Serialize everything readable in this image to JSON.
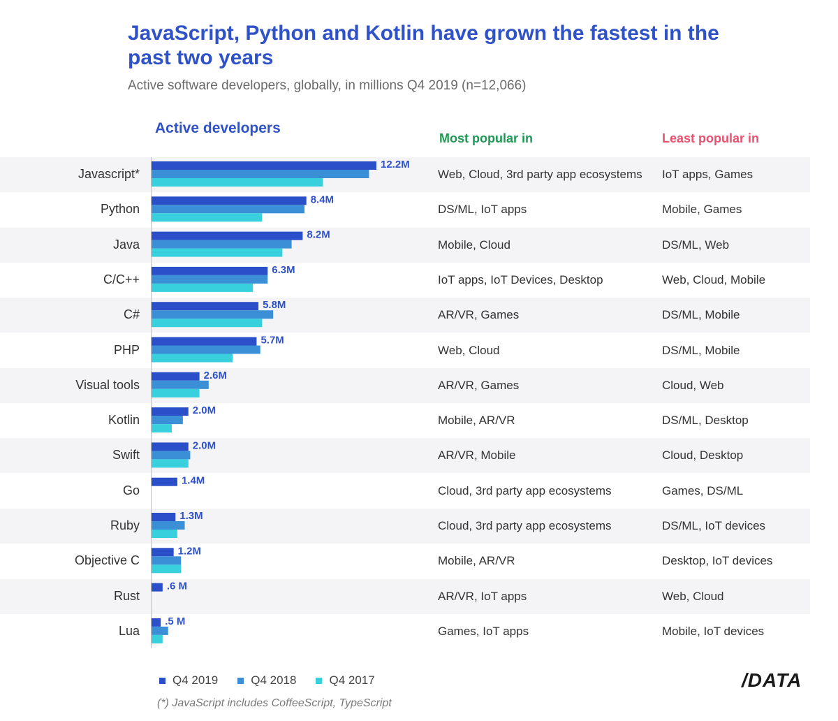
{
  "title": "JavaScript, Python and Kotlin have grown the fastest in the past two years",
  "subtitle": "Active software developers, globally, in millions Q4 2019 (n=12,066)",
  "headers": {
    "active": "Active developers",
    "most": "Most popular in",
    "least": "Least popular in"
  },
  "colors": {
    "q4_2019": "#2b4fc9",
    "q4_2018": "#3b8fd6",
    "q4_2017": "#38d0dc",
    "title": "#2f52c8"
  },
  "chart_data": {
    "type": "bar",
    "orientation": "horizontal",
    "title": "Active developers",
    "unit": "millions",
    "categories": [
      "Javascript*",
      "Python",
      "Java",
      "C/C++",
      "C#",
      "PHP",
      "Visual tools",
      "Kotlin",
      "Swift",
      "Go",
      "Ruby",
      "Objective C",
      "Rust",
      "Lua"
    ],
    "series": [
      {
        "name": "Q4 2019",
        "values": [
          12.2,
          8.4,
          8.2,
          6.3,
          5.8,
          5.7,
          2.6,
          2.0,
          2.0,
          1.4,
          1.3,
          1.2,
          0.6,
          0.5
        ]
      },
      {
        "name": "Q4 2018",
        "values": [
          11.8,
          8.3,
          7.6,
          6.3,
          6.6,
          5.9,
          3.1,
          1.7,
          2.1,
          0,
          1.8,
          1.6,
          0,
          0.9
        ]
      },
      {
        "name": "Q4 2017",
        "values": [
          9.3,
          6.0,
          7.1,
          5.5,
          6.0,
          4.4,
          2.6,
          1.1,
          2.0,
          0,
          1.4,
          1.6,
          0,
          0.6
        ]
      }
    ],
    "value_labels": [
      "12.2M",
      "8.4M",
      "8.2M",
      "6.3M",
      "5.8M",
      "5.7M",
      "2.6M",
      "2.0M",
      "2.0M",
      "1.4M",
      "1.3M",
      "1.2M",
      ".6 M",
      ".5 M"
    ],
    "xlim": [
      0,
      12.2
    ]
  },
  "rows": [
    {
      "lang": "Javascript*",
      "most": "Web, Cloud, 3rd party app ecosystems",
      "least": "IoT apps, Games"
    },
    {
      "lang": "Python",
      "most": "DS/ML, IoT apps",
      "least": "Mobile, Games"
    },
    {
      "lang": "Java",
      "most": "Mobile, Cloud",
      "least": "DS/ML, Web"
    },
    {
      "lang": "C/C++",
      "most": "IoT apps, IoT Devices, Desktop",
      "least": "Web, Cloud, Mobile"
    },
    {
      "lang": "C#",
      "most": "AR/VR, Games",
      "least": "DS/ML, Mobile"
    },
    {
      "lang": "PHP",
      "most": "Web, Cloud",
      "least": "DS/ML, Mobile"
    },
    {
      "lang": "Visual tools",
      "most": "AR/VR, Games",
      "least": "Cloud, Web"
    },
    {
      "lang": "Kotlin",
      "most": "Mobile, AR/VR",
      "least": "DS/ML, Desktop"
    },
    {
      "lang": "Swift",
      "most": "AR/VR, Mobile",
      "least": "Cloud, Desktop"
    },
    {
      "lang": "Go",
      "most": "Cloud, 3rd party app ecosystems",
      "least": "Games, DS/ML"
    },
    {
      "lang": "Ruby",
      "most": "Cloud, 3rd party app ecosystems",
      "least": "DS/ML, IoT devices"
    },
    {
      "lang": "Objective C",
      "most": "Mobile, AR/VR",
      "least": "Desktop, IoT devices"
    },
    {
      "lang": "Rust",
      "most": "AR/VR, IoT apps",
      "least": "Web, Cloud"
    },
    {
      "lang": "Lua",
      "most": "Games, IoT apps",
      "least": "Mobile, IoT devices"
    }
  ],
  "legend": [
    "Q4 2019",
    "Q4 2018",
    "Q4 2017"
  ],
  "footnote": "(*) JavaScript includes CoffeeScript, TypeScript",
  "logo": "/DATA"
}
